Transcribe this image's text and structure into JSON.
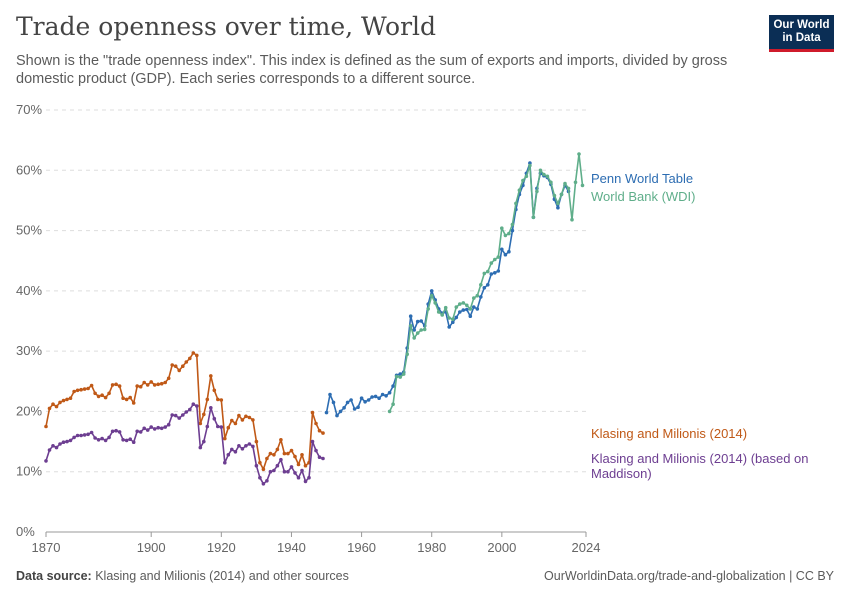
{
  "header": {
    "title": "Trade openness over time, World",
    "subtitle": "Shown is the \"trade openness index\". This index is defined as the sum of exports and imports, divided by gross domestic product (GDP). Each series corresponds to a different source.",
    "logo_line1": "Our World",
    "logo_line2": "in Data"
  },
  "footer": {
    "source_label": "Data source:",
    "source_text": "Klasing and Milionis (2014) and other sources",
    "url": "OurWorldinData.org/trade-and-globalization | CC BY"
  },
  "chart_data": {
    "type": "line",
    "title": "Trade openness over time, World",
    "xlabel": "",
    "ylabel": "",
    "xlim": [
      1870,
      2024
    ],
    "ylim": [
      0,
      70
    ],
    "x_ticks": [
      1870,
      1900,
      1920,
      1940,
      1960,
      1980,
      2000,
      2024
    ],
    "y_ticks": [
      0,
      10,
      20,
      30,
      40,
      50,
      60,
      70
    ],
    "y_tick_suffix": "%",
    "grid": true,
    "legend": "right-inline",
    "series": [
      {
        "name": "Klasing and Milionis (2014)",
        "color": "#c05917",
        "x": [
          1870,
          1871,
          1872,
          1873,
          1874,
          1875,
          1876,
          1877,
          1878,
          1879,
          1880,
          1881,
          1882,
          1883,
          1884,
          1885,
          1886,
          1887,
          1888,
          1889,
          1890,
          1891,
          1892,
          1893,
          1894,
          1895,
          1896,
          1897,
          1898,
          1899,
          1900,
          1901,
          1902,
          1903,
          1904,
          1905,
          1906,
          1907,
          1908,
          1909,
          1910,
          1911,
          1912,
          1913,
          1914,
          1915,
          1916,
          1917,
          1918,
          1919,
          1920,
          1921,
          1922,
          1923,
          1924,
          1925,
          1926,
          1927,
          1928,
          1929,
          1930,
          1931,
          1932,
          1933,
          1934,
          1935,
          1936,
          1937,
          1938,
          1939,
          1940,
          1941,
          1942,
          1943,
          1944,
          1945,
          1946,
          1947,
          1948,
          1949
        ],
        "y": [
          17.5,
          20.5,
          21.2,
          20.8,
          21.5,
          21.8,
          22.0,
          22.2,
          23.3,
          23.5,
          23.6,
          23.7,
          23.8,
          24.3,
          23.0,
          22.5,
          22.7,
          22.3,
          23.0,
          24.4,
          24.5,
          24.2,
          22.2,
          22.0,
          22.3,
          21.4,
          24.2,
          24.1,
          24.8,
          24.4,
          24.9,
          24.4,
          24.5,
          24.6,
          24.8,
          25.5,
          27.7,
          27.5,
          26.8,
          27.5,
          28.2,
          28.8,
          29.7,
          29.3,
          18.0,
          19.5,
          22.0,
          25.9,
          23.5,
          22.0,
          21.9,
          15.5,
          17.3,
          18.5,
          18.0,
          19.3,
          18.6,
          19.2,
          19.0,
          18.6,
          15.0,
          11.5,
          10.4,
          12.2,
          13.0,
          12.8,
          13.7,
          15.3,
          13.0,
          13.0,
          13.5,
          12.5,
          11.2,
          12.8,
          11.0,
          11.5,
          19.8,
          18.0,
          16.8,
          16.4
        ]
      },
      {
        "name": "Klasing and Milionis (2014) (based on Maddison)",
        "color": "#6d3e91",
        "x": [
          1870,
          1871,
          1872,
          1873,
          1874,
          1875,
          1876,
          1877,
          1878,
          1879,
          1880,
          1881,
          1882,
          1883,
          1884,
          1885,
          1886,
          1887,
          1888,
          1889,
          1890,
          1891,
          1892,
          1893,
          1894,
          1895,
          1896,
          1897,
          1898,
          1899,
          1900,
          1901,
          1902,
          1903,
          1904,
          1905,
          1906,
          1907,
          1908,
          1909,
          1910,
          1911,
          1912,
          1913,
          1914,
          1915,
          1916,
          1917,
          1918,
          1919,
          1920,
          1921,
          1922,
          1923,
          1924,
          1925,
          1926,
          1927,
          1928,
          1929,
          1930,
          1931,
          1932,
          1933,
          1934,
          1935,
          1936,
          1937,
          1938,
          1939,
          1940,
          1941,
          1942,
          1943,
          1944,
          1945,
          1946,
          1947,
          1948,
          1949
        ],
        "y": [
          11.8,
          13.6,
          14.3,
          14.0,
          14.6,
          14.9,
          15.0,
          15.2,
          15.7,
          16.0,
          16.0,
          16.1,
          16.2,
          16.5,
          15.6,
          15.3,
          15.5,
          15.2,
          15.7,
          16.7,
          16.8,
          16.6,
          15.3,
          15.2,
          15.4,
          14.9,
          16.7,
          16.6,
          17.2,
          16.9,
          17.4,
          17.1,
          17.3,
          17.2,
          17.4,
          17.8,
          19.4,
          19.3,
          18.9,
          19.4,
          19.9,
          20.3,
          21.2,
          20.9,
          14.0,
          15.0,
          17.5,
          20.6,
          18.8,
          17.5,
          17.4,
          11.5,
          12.8,
          13.7,
          13.3,
          14.3,
          13.8,
          14.3,
          14.6,
          14.2,
          11.0,
          9.0,
          8.0,
          8.5,
          10.0,
          10.2,
          11.0,
          12.0,
          10.0,
          10.0,
          10.8,
          9.8,
          9.0,
          10.2,
          8.4,
          9.0,
          15.0,
          13.5,
          12.4,
          12.2
        ]
      },
      {
        "name": "Penn World Table",
        "color": "#2d6db2",
        "x": [
          1950,
          1951,
          1952,
          1953,
          1954,
          1955,
          1956,
          1957,
          1958,
          1959,
          1960,
          1961,
          1962,
          1963,
          1964,
          1965,
          1966,
          1967,
          1968,
          1969,
          1970,
          1971,
          1972,
          1973,
          1974,
          1975,
          1976,
          1977,
          1978,
          1979,
          1980,
          1981,
          1982,
          1983,
          1984,
          1985,
          1986,
          1987,
          1988,
          1989,
          1990,
          1991,
          1992,
          1993,
          1994,
          1995,
          1996,
          1997,
          1998,
          1999,
          2000,
          2001,
          2002,
          2003,
          2004,
          2005,
          2006,
          2007,
          2008,
          2009,
          2010,
          2011,
          2012,
          2013,
          2014,
          2015,
          2016,
          2017,
          2018,
          2019
        ],
        "y": [
          19.8,
          22.8,
          21.5,
          19.3,
          20.0,
          20.6,
          21.5,
          21.9,
          20.4,
          20.7,
          22.2,
          21.6,
          21.9,
          22.4,
          22.5,
          22.2,
          22.8,
          22.6,
          23.1,
          24.2,
          26.0,
          26.2,
          26.5,
          30.5,
          35.8,
          33.5,
          34.9,
          35.0,
          34.2,
          37.8,
          40.0,
          38.5,
          37.0,
          36.3,
          36.5,
          34.0,
          34.8,
          35.6,
          36.5,
          36.8,
          36.9,
          35.8,
          37.3,
          37.0,
          39.0,
          40.5,
          41.0,
          42.8,
          43.0,
          43.3,
          46.9,
          46.0,
          46.5,
          50.0,
          53.5,
          56.0,
          57.5,
          59.5,
          61.2,
          52.2,
          57.0,
          59.5,
          59.1,
          58.8,
          57.7,
          55.2,
          53.8,
          56.0,
          57.5,
          56.5
        ]
      },
      {
        "name": "World Bank (WDI)",
        "color": "#5fae8a",
        "x": [
          1968,
          1969,
          1970,
          1971,
          1972,
          1973,
          1974,
          1975,
          1976,
          1977,
          1978,
          1979,
          1980,
          1981,
          1982,
          1983,
          1984,
          1985,
          1986,
          1987,
          1988,
          1989,
          1990,
          1991,
          1992,
          1993,
          1994,
          1995,
          1996,
          1997,
          1998,
          1999,
          2000,
          2001,
          2002,
          2003,
          2004,
          2005,
          2006,
          2007,
          2008,
          2009,
          2010,
          2011,
          2012,
          2013,
          2014,
          2015,
          2016,
          2017,
          2018,
          2019,
          2020,
          2021,
          2022,
          2023
        ],
        "y": [
          20.0,
          21.2,
          25.8,
          25.7,
          26.2,
          29.5,
          34.2,
          32.2,
          33.0,
          33.5,
          33.6,
          37.0,
          39.2,
          38.0,
          36.5,
          36.0,
          37.2,
          35.5,
          35.3,
          37.3,
          37.8,
          38.0,
          37.6,
          37.0,
          38.8,
          39.2,
          41.0,
          42.9,
          43.2,
          44.6,
          45.2,
          45.6,
          50.4,
          49.2,
          49.5,
          51.0,
          54.5,
          56.7,
          58.3,
          59.0,
          60.8,
          52.2,
          56.5,
          60.0,
          59.3,
          59.0,
          58.0,
          55.8,
          54.5,
          56.0,
          57.8,
          57.0,
          51.8,
          58.0,
          62.7,
          57.5
        ]
      }
    ]
  }
}
